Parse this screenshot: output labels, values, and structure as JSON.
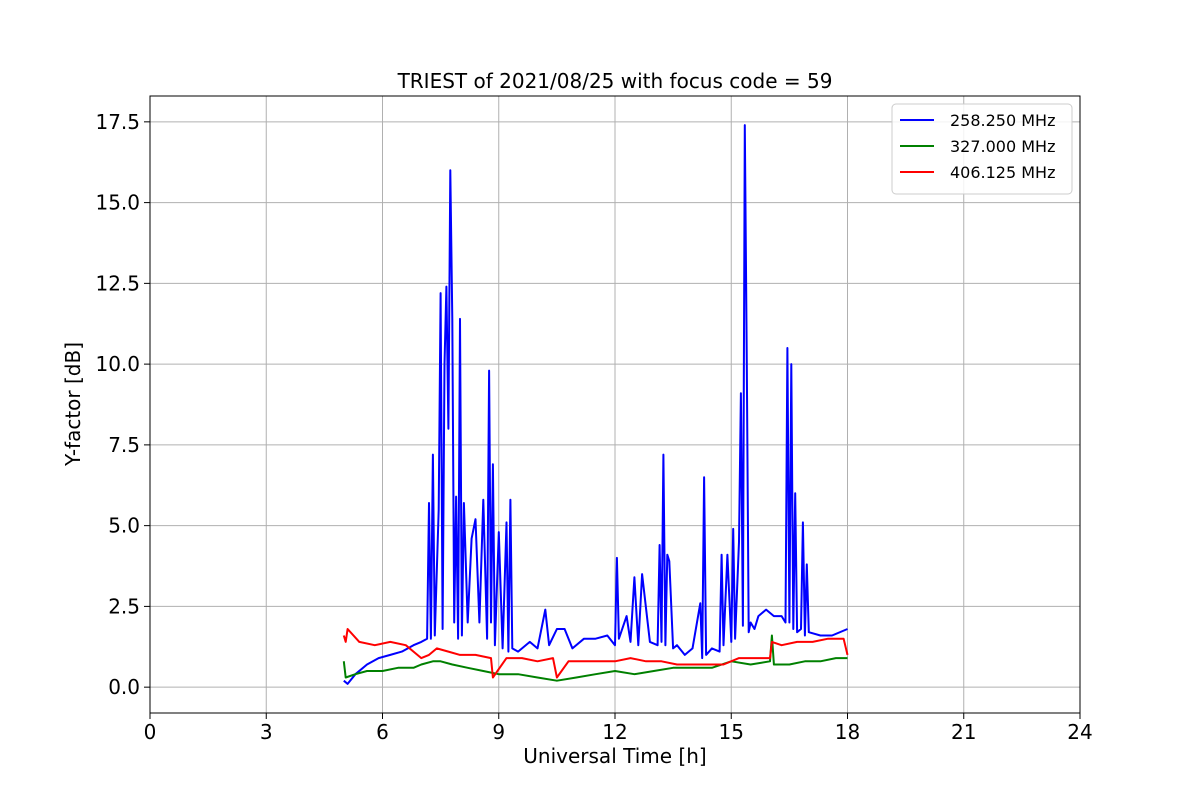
{
  "chart_data": {
    "type": "line",
    "title": "TRIEST of 2021/08/25 with focus code = 59",
    "xlabel": "Universal Time [h]",
    "ylabel": "Y-factor [dB]",
    "xlim": [
      0,
      24
    ],
    "ylim": [
      -0.8,
      18.3
    ],
    "xticks": [
      0,
      3,
      6,
      9,
      12,
      15,
      18,
      21,
      24
    ],
    "xtick_labels": [
      "0",
      "3",
      "6",
      "9",
      "12",
      "15",
      "18",
      "21",
      "24"
    ],
    "yticks": [
      0,
      2.5,
      5,
      7.5,
      10,
      12.5,
      15,
      17.5
    ],
    "ytick_labels": [
      "0.0",
      "2.5",
      "5.0",
      "7.5",
      "10.0",
      "12.5",
      "15.0",
      "17.5"
    ],
    "grid": true,
    "legend_position": "top-right",
    "series": [
      {
        "name": "258.250 MHz",
        "color": "#0000ff",
        "x": [
          5.0,
          5.1,
          5.3,
          5.6,
          5.9,
          6.2,
          6.5,
          6.8,
          7.0,
          7.15,
          7.2,
          7.25,
          7.3,
          7.35,
          7.45,
          7.5,
          7.55,
          7.6,
          7.65,
          7.7,
          7.75,
          7.8,
          7.85,
          7.9,
          7.95,
          8.0,
          8.05,
          8.1,
          8.2,
          8.3,
          8.4,
          8.5,
          8.6,
          8.7,
          8.75,
          8.8,
          8.85,
          8.9,
          9.0,
          9.1,
          9.2,
          9.25,
          9.3,
          9.35,
          9.5,
          9.8,
          10.0,
          10.2,
          10.3,
          10.5,
          10.7,
          10.9,
          11.2,
          11.5,
          11.8,
          12.0,
          12.05,
          12.1,
          12.3,
          12.4,
          12.5,
          12.6,
          12.7,
          12.9,
          13.1,
          13.15,
          13.2,
          13.25,
          13.3,
          13.35,
          13.4,
          13.5,
          13.6,
          13.8,
          14.0,
          14.2,
          14.25,
          14.3,
          14.35,
          14.5,
          14.7,
          14.75,
          14.8,
          14.9,
          15.0,
          15.05,
          15.1,
          15.2,
          15.25,
          15.3,
          15.35,
          15.4,
          15.45,
          15.5,
          15.6,
          15.7,
          15.9,
          16.1,
          16.3,
          16.4,
          16.45,
          16.5,
          16.55,
          16.6,
          16.65,
          16.7,
          16.8,
          16.85,
          16.9,
          16.95,
          17.0,
          17.3,
          17.6,
          18.0
        ],
        "y": [
          0.2,
          0.1,
          0.4,
          0.7,
          0.9,
          1.0,
          1.1,
          1.3,
          1.4,
          1.5,
          5.7,
          1.5,
          7.2,
          1.6,
          5.5,
          12.2,
          1.8,
          10.0,
          12.4,
          8.0,
          16.0,
          11.4,
          2.0,
          5.9,
          1.5,
          11.4,
          1.6,
          5.7,
          2.0,
          4.6,
          5.2,
          2.0,
          5.8,
          1.5,
          9.8,
          2.0,
          6.9,
          1.3,
          4.8,
          1.2,
          5.1,
          1.1,
          5.8,
          1.2,
          1.1,
          1.4,
          1.2,
          2.4,
          1.3,
          1.8,
          1.8,
          1.2,
          1.5,
          1.5,
          1.6,
          1.3,
          4.0,
          1.5,
          2.2,
          1.4,
          3.4,
          1.3,
          3.5,
          1.4,
          1.3,
          4.4,
          1.4,
          7.2,
          1.3,
          4.1,
          3.9,
          1.2,
          1.3,
          1.0,
          1.2,
          2.6,
          0.9,
          6.5,
          1.0,
          1.2,
          1.1,
          4.1,
          1.3,
          4.1,
          1.4,
          4.9,
          1.5,
          4.5,
          9.1,
          1.9,
          17.4,
          10.0,
          1.7,
          2.0,
          1.8,
          2.2,
          2.4,
          2.2,
          2.2,
          2.0,
          10.5,
          2.0,
          10.0,
          1.8,
          6.0,
          1.7,
          1.8,
          5.1,
          1.6,
          3.8,
          1.7,
          1.6,
          1.6,
          1.8
        ]
      },
      {
        "name": "327.000 MHz",
        "color": "#008000",
        "x": [
          5.0,
          5.05,
          5.3,
          5.6,
          6.0,
          6.4,
          6.8,
          7.0,
          7.3,
          7.5,
          7.8,
          8.2,
          8.6,
          9.0,
          9.5,
          10.0,
          10.5,
          11.0,
          11.5,
          12.0,
          12.5,
          13.0,
          13.5,
          14.0,
          14.5,
          15.0,
          15.5,
          16.0,
          16.05,
          16.1,
          16.5,
          16.9,
          17.3,
          17.7,
          18.0
        ],
        "y": [
          0.8,
          0.3,
          0.4,
          0.5,
          0.5,
          0.6,
          0.6,
          0.7,
          0.8,
          0.8,
          0.7,
          0.6,
          0.5,
          0.4,
          0.4,
          0.3,
          0.2,
          0.3,
          0.4,
          0.5,
          0.4,
          0.5,
          0.6,
          0.6,
          0.6,
          0.8,
          0.7,
          0.8,
          1.6,
          0.7,
          0.7,
          0.8,
          0.8,
          0.9,
          0.9
        ]
      },
      {
        "name": "406.125 MHz",
        "color": "#ff0000",
        "x": [
          5.0,
          5.05,
          5.1,
          5.4,
          5.8,
          6.2,
          6.6,
          6.8,
          7.0,
          7.2,
          7.4,
          7.7,
          8.0,
          8.4,
          8.8,
          8.85,
          9.2,
          9.6,
          10.0,
          10.4,
          10.5,
          10.8,
          11.2,
          11.6,
          12.0,
          12.4,
          12.8,
          13.2,
          13.6,
          14.0,
          14.4,
          14.8,
          15.2,
          15.6,
          16.0,
          16.05,
          16.3,
          16.7,
          17.1,
          17.5,
          17.9,
          18.0
        ],
        "y": [
          1.6,
          1.4,
          1.8,
          1.4,
          1.3,
          1.4,
          1.3,
          1.1,
          0.9,
          1.0,
          1.2,
          1.1,
          1.0,
          1.0,
          0.9,
          0.3,
          0.9,
          0.9,
          0.8,
          0.9,
          0.3,
          0.8,
          0.8,
          0.8,
          0.8,
          0.9,
          0.8,
          0.8,
          0.7,
          0.7,
          0.7,
          0.7,
          0.9,
          0.9,
          0.9,
          1.4,
          1.3,
          1.4,
          1.4,
          1.5,
          1.5,
          1.0
        ]
      }
    ]
  }
}
